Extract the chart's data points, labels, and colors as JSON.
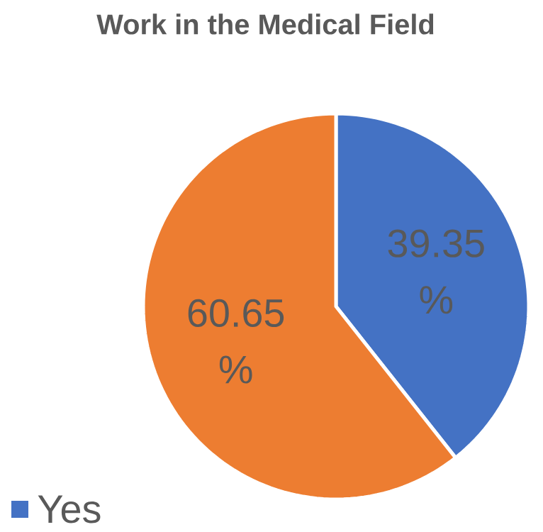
{
  "chart_data": {
    "type": "pie",
    "title": "Work in the Medical Field",
    "categories": [
      "Yes",
      null
    ],
    "values": [
      39.35,
      60.65
    ],
    "colors": [
      "#4472c4",
      "#ed7d31"
    ],
    "value_labels": [
      "39.35 %",
      "60.65 %"
    ],
    "legend": "bottom left"
  }
}
